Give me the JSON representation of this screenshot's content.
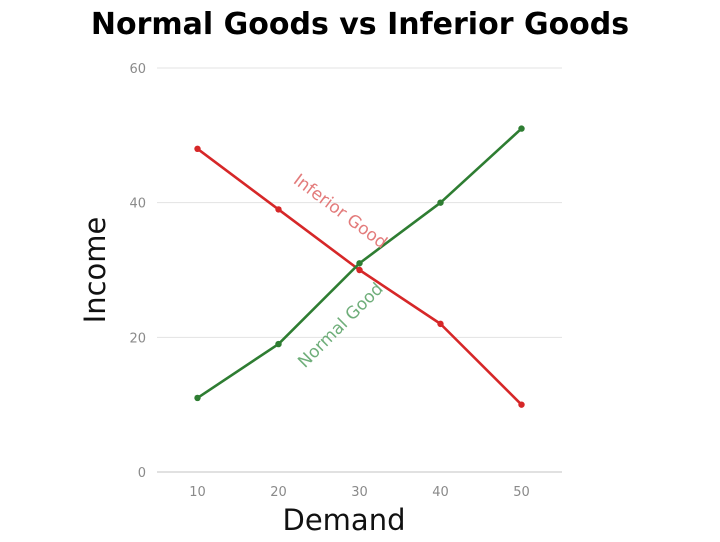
{
  "chart_data": {
    "type": "line",
    "title": "Normal Goods vs Inferior Goods",
    "xlabel": "Demand",
    "ylabel": "Income",
    "x": [
      10,
      20,
      30,
      40,
      50
    ],
    "x_ticks": [
      "10",
      "20",
      "30",
      "40",
      "50"
    ],
    "y_ticks": [
      "0",
      "20",
      "40",
      "60"
    ],
    "xlim": [
      5,
      55
    ],
    "ylim": [
      0,
      60
    ],
    "grid": "horizontal",
    "legend": "none",
    "series": [
      {
        "name": "Inferior Good",
        "values": [
          48,
          39,
          30,
          22,
          10
        ],
        "color": "#d62728"
      },
      {
        "name": "Normal Good",
        "values": [
          11,
          19,
          31,
          40,
          51
        ],
        "color": "#2e7d32"
      }
    ],
    "annotations": [
      {
        "text": "Inferior Good",
        "series": 1,
        "color": "#e37b7b"
      },
      {
        "text": "Normal Good",
        "series": 2,
        "color": "#6fae7a"
      }
    ]
  }
}
